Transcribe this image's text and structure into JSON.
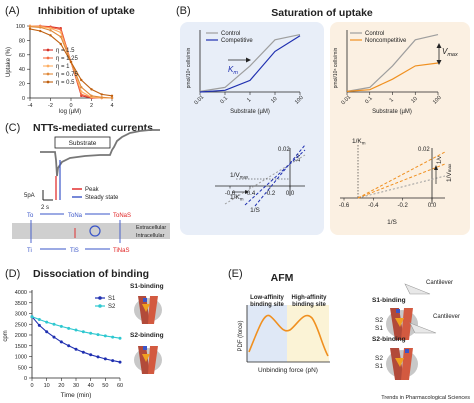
{
  "panels": {
    "A": {
      "letter": "(A)",
      "title": "Inhibition of uptake",
      "ylabel": "Uptake (%)",
      "xlabel": "log (µM)",
      "yticks": [
        "0",
        "20",
        "40",
        "60",
        "80",
        "100"
      ],
      "xticks": [
        "-4",
        "-2",
        "0",
        "2",
        "4"
      ],
      "legend": [
        "η = 1.5",
        "η = 1.25",
        "η = 1",
        "η = 0.75",
        "η = 0.5"
      ],
      "colors": [
        "#d73027",
        "#f46d43",
        "#fdae61",
        "#e08a3c",
        "#c06010"
      ]
    },
    "B": {
      "letter": "(B)",
      "title": "Saturation of uptake",
      "left_legend": [
        "Control",
        "Competitive"
      ],
      "right_legend": [
        "Control",
        "Noncompetitive"
      ],
      "ylabel": "pmol/10⁶ cells/min",
      "xlabel": "Substrate (µM)",
      "xticks": [
        "0.01",
        "0.1",
        "1",
        "10",
        "100"
      ],
      "km_label": "K",
      "km_sub": "m",
      "vmax_label": "V",
      "vmax_sub": "max",
      "lb_top_left": "0.02",
      "lb_top_right": "0.02",
      "lb_xticks_left": [
        "-0.6",
        "-0.4",
        "-0.2",
        "0.0"
      ],
      "lb_xticks_right": [
        "-0.6",
        "-0.4",
        "-0.2",
        "0.0"
      ],
      "lb_xlabel": "1/S",
      "lb_ylabel": "1/v",
      "inv_vmax_label": "1/V",
      "inv_km_label": "1/K",
      "right_inv_km_label": "1/K",
      "colors": {
        "control": "#9e9e9e",
        "competitive": "#1f2fb0",
        "noncompetitive": "#f09020",
        "left_bg": "#e8eef8",
        "right_bg": "#fbf0e2"
      }
    },
    "C": {
      "letter": "(C)",
      "title": "NTTs-mediated currents",
      "substrate_label": "Substrate",
      "scale_y": "5pA",
      "scale_x": "2 s",
      "legend": [
        "Peak",
        "Steady state"
      ],
      "states_top": [
        "To",
        "ToNa",
        "ToNaS"
      ],
      "states_bottom": [
        "Ti",
        "TiS",
        "TiNaS"
      ],
      "extracellular": "Extracellular",
      "intracellular": "Intracellular"
    },
    "D": {
      "letter": "(D)",
      "title": "Dissociation of binding",
      "ylabel": "cpm",
      "xlabel": "Time (min)",
      "yticks": [
        "0",
        "500",
        "1000",
        "1500",
        "2000",
        "2500",
        "3000",
        "3500",
        "4000"
      ],
      "xticks": [
        "0",
        "10",
        "20",
        "30",
        "40",
        "50",
        "60"
      ],
      "legend": [
        "S1",
        "S2"
      ],
      "s1_binding": "S1-binding",
      "s2_binding": "S2-binding"
    },
    "E": {
      "letter": "(E)",
      "title": "AFM",
      "low_label_1": "Low-affinity",
      "low_label_2": "binding site",
      "high_label_1": "High-affinity",
      "high_label_2": "binding site",
      "ylabel": "PDF (force)",
      "xlabel": "Unbinding force (pN)",
      "cantilever": "Cantilever",
      "s1_binding": "S1-binding",
      "s2_binding": "S2-binding",
      "s1": "S1",
      "s2": "S2"
    }
  },
  "credit": "Trends in Pharmacological Sciences",
  "chart_data": [
    {
      "type": "line",
      "title": "Inhibition of uptake",
      "xlabel": "log (µM)",
      "ylabel": "Uptake (%)",
      "xlim": [
        -4,
        4
      ],
      "ylim": [
        0,
        100
      ],
      "x": [
        -4,
        -3,
        -2,
        -1,
        0,
        1,
        2,
        3,
        4
      ],
      "series": [
        {
          "name": "η = 1.5",
          "values": [
            100,
            100,
            99,
            97,
            50,
            3,
            0,
            0,
            0
          ]
        },
        {
          "name": "η = 1.25",
          "values": [
            100,
            100,
            98,
            95,
            50,
            5,
            1,
            0,
            0
          ]
        },
        {
          "name": "η = 1",
          "values": [
            100,
            99,
            97,
            91,
            50,
            9,
            1,
            0,
            0
          ]
        },
        {
          "name": "η = 0.75",
          "values": [
            99,
            98,
            94,
            85,
            50,
            15,
            3,
            1,
            0
          ]
        },
        {
          "name": "η = 0.5",
          "values": [
            96,
            93,
            87,
            75,
            50,
            25,
            12,
            5,
            3
          ]
        }
      ]
    },
    {
      "type": "line",
      "title": "Saturation of uptake",
      "xlabel": "Substrate (µM)",
      "ylabel": "pmol/10⁶ cells/min",
      "x": [
        0.01,
        0.1,
        1,
        10,
        100
      ],
      "series": [
        {
          "name": "Control",
          "values": [
            1,
            8,
            45,
            90,
            99
          ]
        },
        {
          "name": "Competitive",
          "values": [
            0,
            3,
            20,
            70,
            97
          ]
        }
      ]
    },
    {
      "type": "line",
      "xlabel": "Substrate (µM)",
      "ylabel": "pmol/10⁶ cells/min",
      "x": [
        0.01,
        0.1,
        1,
        10,
        100
      ],
      "series": [
        {
          "name": "Control",
          "values": [
            1,
            8,
            45,
            90,
            99
          ]
        },
        {
          "name": "Noncompetitive",
          "values": [
            1,
            4,
            22,
            45,
            50
          ]
        }
      ]
    },
    {
      "type": "line",
      "title": "Dissociation of binding",
      "xlabel": "Time (min)",
      "ylabel": "cpm",
      "xlim": [
        0,
        60
      ],
      "ylim": [
        0,
        4000
      ],
      "x": [
        0,
        5,
        10,
        15,
        20,
        25,
        30,
        35,
        40,
        45,
        50,
        55,
        60
      ],
      "series": [
        {
          "name": "S1",
          "values": [
            2850,
            2450,
            2150,
            1900,
            1680,
            1500,
            1340,
            1200,
            1080,
            980,
            890,
            810,
            740
          ]
        },
        {
          "name": "S2",
          "values": [
            2850,
            2720,
            2600,
            2500,
            2400,
            2310,
            2230,
            2150,
            2080,
            2020,
            1960,
            1900,
            1850
          ]
        }
      ]
    }
  ]
}
